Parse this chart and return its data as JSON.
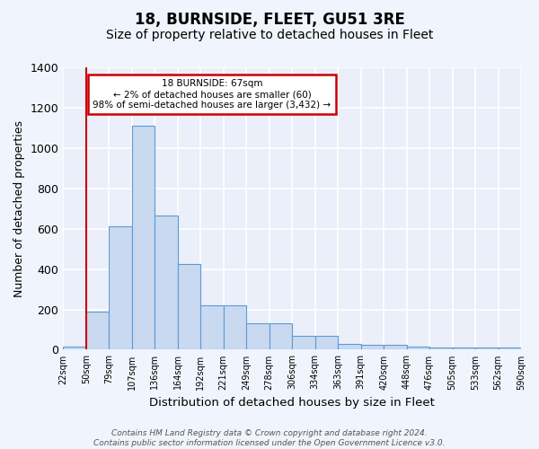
{
  "title": "18, BURNSIDE, FLEET, GU51 3RE",
  "subtitle": "Size of property relative to detached houses in Fleet",
  "xlabel": "Distribution of detached houses by size in Fleet",
  "ylabel": "Number of detached properties",
  "bar_values": [
    15,
    190,
    610,
    1110,
    665,
    425,
    220,
    220,
    130,
    130,
    70,
    70,
    30,
    25,
    25,
    15,
    10,
    10,
    10,
    10
  ],
  "bar_labels": [
    "22sqm",
    "50sqm",
    "79sqm",
    "107sqm",
    "136sqm",
    "164sqm",
    "192sqm",
    "221sqm",
    "249sqm",
    "278sqm",
    "306sqm",
    "334sqm",
    "363sqm",
    "391sqm",
    "420sqm",
    "448sqm",
    "476sqm",
    "505sqm",
    "533sqm",
    "562sqm",
    "590sqm"
  ],
  "bar_color": "#c9d9f0",
  "bar_edge_color": "#5b9bd5",
  "ylim": [
    0,
    1400
  ],
  "yticks": [
    0,
    200,
    400,
    600,
    800,
    1000,
    1200,
    1400
  ],
  "red_line_x": 1,
  "annotation_text": "18 BURNSIDE: 67sqm\n← 2% of detached houses are smaller (60)\n98% of semi-detached houses are larger (3,432) →",
  "annotation_box_color": "#ffffff",
  "annotation_box_edge": "#cc0000",
  "background_color": "#eaeff9",
  "grid_color": "#ffffff",
  "footer": "Contains HM Land Registry data © Crown copyright and database right 2024.\nContains public sector information licensed under the Open Government Licence v3.0.",
  "title_fontsize": 12,
  "subtitle_fontsize": 10
}
